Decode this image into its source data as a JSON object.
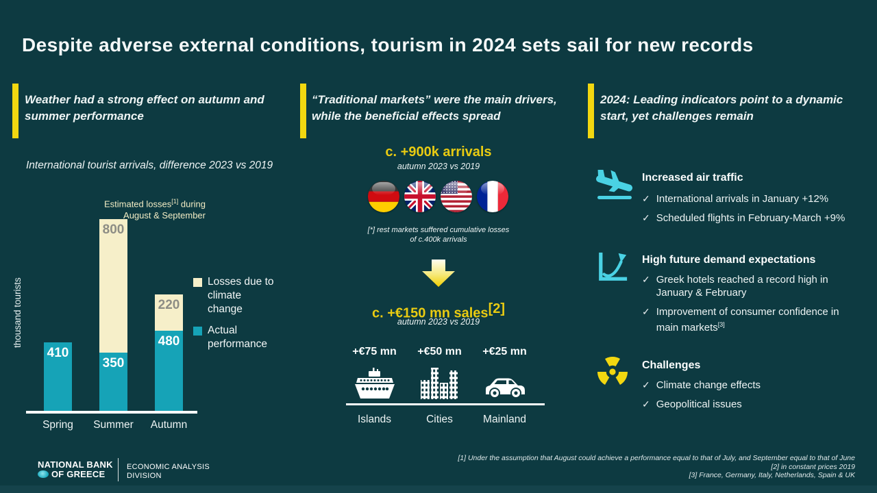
{
  "slide": {
    "title": "Despite adverse external conditions, tourism in 2024 sets sail for new records",
    "colors": {
      "background": "#0d3a41",
      "accent_yellow": "#f2d710",
      "teal_bar": "#16a3b7",
      "cream_bar": "#f6efc9",
      "icon_cyan": "#4ad2e4",
      "headline_yellow": "#e9cb12"
    },
    "footer": {
      "logo_line1": "NATIONAL BANK",
      "logo_line2": "OF GREECE",
      "division_line1": "ECONOMIC ANALYSIS",
      "division_line2": "DIVISION",
      "footnote1": "[1] Under the assumption that August could achieve a performance equal to that of July, and September equal to that of June",
      "footnote2": "[2] in constant prices 2019",
      "footnote3": "[3] France, Germany, Italy, Netherlands, Spain & UK"
    }
  },
  "left_panel": {
    "heading": "Weather had a strong effect on autumn and summer performance"
  },
  "chart_data": {
    "type": "bar",
    "stacked": true,
    "title": "International tourist arrivals, difference 2023 vs 2019",
    "ylabel": "thousand tourists",
    "categories": [
      "Spring",
      "Summer",
      "Autumn"
    ],
    "series": [
      {
        "name": "Actual performance",
        "color": "#16a3b7",
        "label_color": "#ffffff",
        "values": [
          410,
          350,
          480
        ]
      },
      {
        "name": "Losses due to climate change",
        "color": "#f6efc9",
        "label_color": "#8d8d85",
        "values": [
          null,
          800,
          220
        ]
      }
    ],
    "annotation": {
      "line1_pre": "Estimated losses",
      "sup": "[1]",
      "line1_post": " during",
      "line2": "August & September"
    },
    "ylim": [
      0,
      1160
    ],
    "grid": false,
    "legend_position": "right"
  },
  "middle_panel": {
    "heading": "“Traditional markets” were the main drivers, while the beneficial effects spread",
    "arrivals_headline": "c. +900k arrivals",
    "arrivals_subtitle": "autumn 2023 vs 2019",
    "flags": [
      "germany",
      "uk",
      "usa",
      "france"
    ],
    "rest_markets_note_line1": "[*] rest markets suffered cumulative losses",
    "rest_markets_note_line2": "of c.400k arrivals",
    "sales_headline": "c. +€150 mn sales",
    "sales_sup": "[2]",
    "sales_subtitle": "autumn 2023 vs 2019",
    "destinations": [
      {
        "amount": "+€75 mn",
        "label": "Islands",
        "icon": "ship-icon"
      },
      {
        "amount": "+€50 mn",
        "label": "Cities",
        "icon": "buildings-icon"
      },
      {
        "amount": "+€25 mn",
        "label": "Mainland",
        "icon": "car-icon"
      }
    ]
  },
  "right_panel": {
    "heading": "2024: Leading indicators point to a dynamic start, yet challenges remain",
    "sections": [
      {
        "icon": "plane-landing-icon",
        "title": "Increased air traffic",
        "bullets": [
          "International arrivals in January +12%",
          "Scheduled flights in February-March +9%"
        ]
      },
      {
        "icon": "trend-chart-icon",
        "title": "High future demand expectations",
        "bullets": [
          "Greek hotels reached a record high in January & February",
          "Improvement of consumer confidence in main markets"
        ],
        "bullet2_sup": "[3]"
      },
      {
        "icon": "radiation-icon",
        "title": "Challenges",
        "bullets": [
          "Climate change effects",
          "Geopolitical issues"
        ]
      }
    ]
  }
}
